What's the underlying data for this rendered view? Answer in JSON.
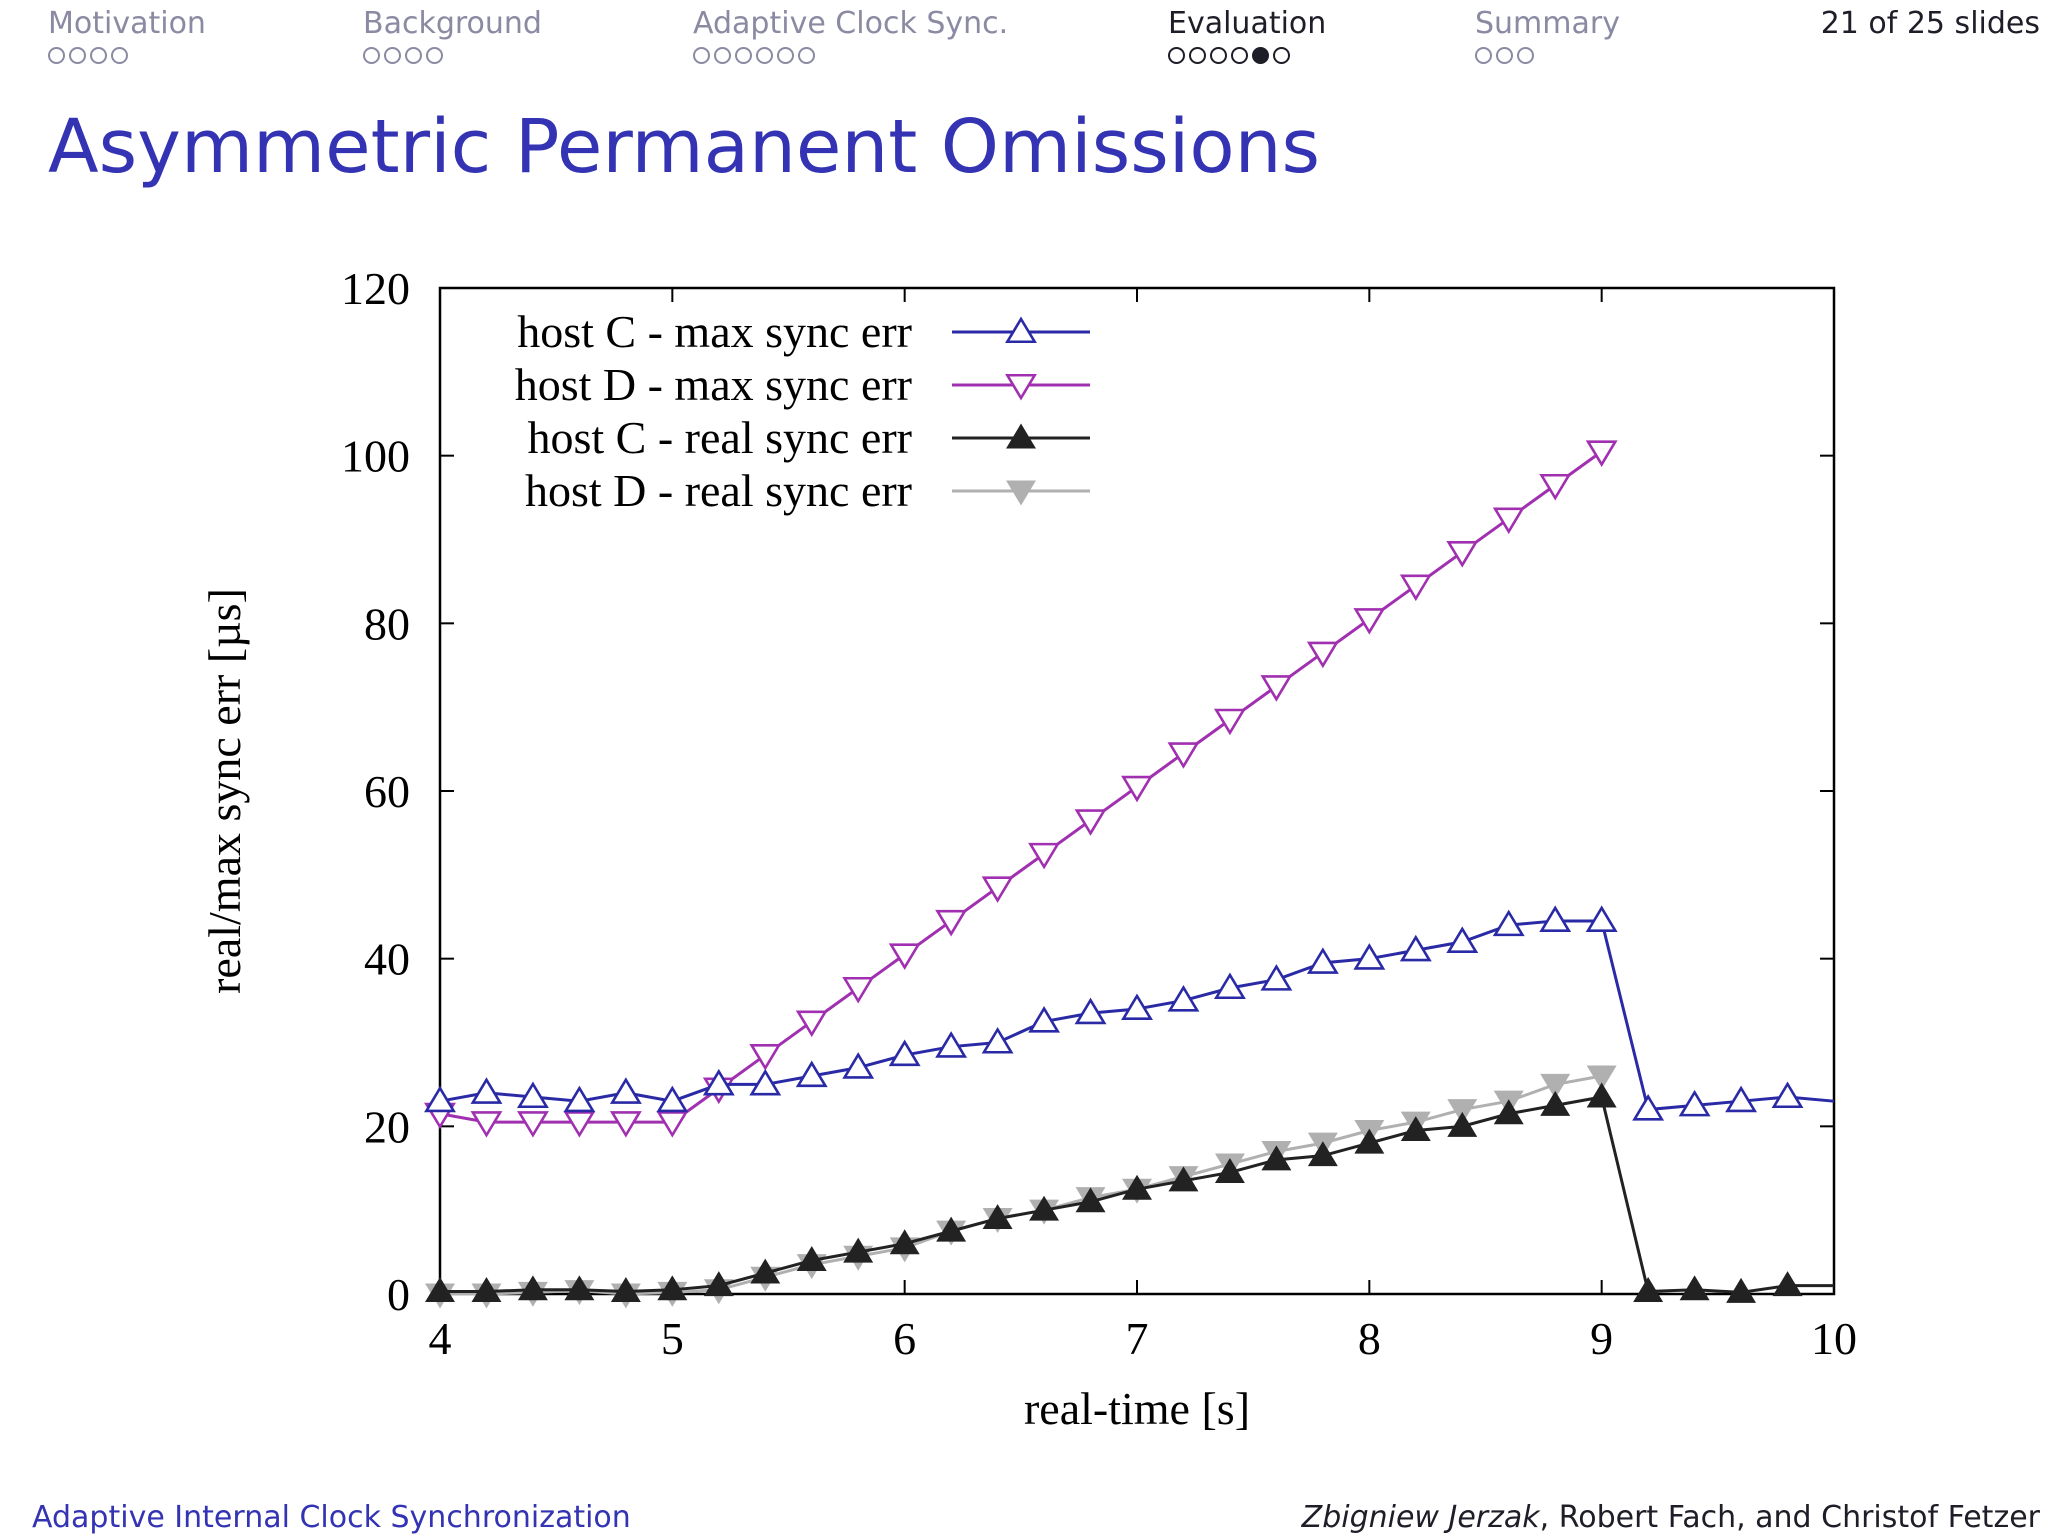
{
  "nav": {
    "sections": [
      {
        "label": "Motivation",
        "dots": 4,
        "filled": []
      },
      {
        "label": "Background",
        "dots": 4,
        "filled": []
      },
      {
        "label": "Adaptive Clock Sync.",
        "dots": 6,
        "filled": []
      },
      {
        "label": "Evaluation",
        "dots": 6,
        "filled": [
          4
        ]
      },
      {
        "label": "Summary",
        "dots": 3,
        "filled": []
      }
    ],
    "current_section": "Evaluation",
    "slide_counter": "21 of 25 slides"
  },
  "slide": {
    "title": "Asymmetric Permanent Omissions"
  },
  "footer": {
    "left": "Adaptive Internal Clock Synchronization",
    "author_highlight": "Zbigniew Jerzak",
    "author_rest": ", Robert Fach, and Christof Fetzer"
  },
  "colors": {
    "accent": "#3333b3",
    "text": "#1e1e28",
    "nav_muted": "#8a8aa3"
  },
  "chart_data": {
    "type": "line",
    "title": "",
    "xlabel": "real-time [s]",
    "ylabel": "real/max sync err [µs]",
    "xlim": [
      4,
      10
    ],
    "ylim": [
      0,
      120
    ],
    "xticks": [
      4,
      5,
      6,
      7,
      8,
      9,
      10
    ],
    "yticks": [
      0,
      20,
      40,
      60,
      80,
      100,
      120
    ],
    "grid": false,
    "legend_position": "top-left",
    "series": [
      {
        "name": "host C - max sync err",
        "color": "#2a2aa6",
        "marker": "triangle-up-open",
        "x": [
          4.0,
          4.2,
          4.4,
          4.6,
          4.8,
          5.0,
          5.2,
          5.4,
          5.6,
          5.8,
          6.0,
          6.2,
          6.4,
          6.6,
          6.8,
          7.0,
          7.2,
          7.4,
          7.6,
          7.8,
          8.0,
          8.2,
          8.4,
          8.6,
          8.8,
          9.0,
          9.2,
          9.4,
          9.6,
          9.8,
          10.0
        ],
        "y": [
          23,
          24,
          23.5,
          23,
          24,
          23,
          25,
          25,
          26,
          27,
          28.5,
          29.5,
          30,
          32.5,
          33.5,
          34,
          35,
          36.5,
          37.5,
          39.5,
          40,
          41,
          42,
          44,
          44.5,
          44.5,
          22,
          22.5,
          23,
          23.5,
          23
        ]
      },
      {
        "name": "host D - max sync err",
        "color": "#a030b0",
        "marker": "triangle-down-open",
        "x": [
          4.0,
          4.2,
          4.4,
          4.6,
          4.8,
          5.0,
          5.2,
          5.4,
          5.6,
          5.8,
          6.0,
          6.2,
          6.4,
          6.6,
          6.8,
          7.0,
          7.2,
          7.4,
          7.6,
          7.8,
          8.0,
          8.2,
          8.4,
          8.6,
          8.8,
          9.0
        ],
        "y": [
          21.5,
          20.5,
          20.5,
          20.5,
          20.5,
          20.5,
          24.5,
          28.5,
          32.5,
          36.5,
          40.5,
          44.5,
          48.5,
          52.5,
          56.5,
          60.5,
          64.5,
          68.5,
          72.5,
          76.5,
          80.5,
          84.5,
          88.5,
          92.5,
          96.5,
          100.5
        ]
      },
      {
        "name": "host C - real sync err",
        "color": "#222222",
        "marker": "triangle-up-filled",
        "x": [
          4.0,
          4.2,
          4.4,
          4.6,
          4.8,
          5.0,
          5.2,
          5.4,
          5.6,
          5.8,
          6.0,
          6.2,
          6.4,
          6.6,
          6.8,
          7.0,
          7.2,
          7.4,
          7.6,
          7.8,
          8.0,
          8.2,
          8.4,
          8.6,
          8.8,
          9.0,
          9.2,
          9.4,
          9.6,
          9.8,
          10.0
        ],
        "y": [
          0.3,
          0.3,
          0.5,
          0.5,
          0.3,
          0.5,
          1.0,
          2.5,
          4.0,
          5.0,
          6.0,
          7.5,
          9.0,
          10.0,
          11.0,
          12.5,
          13.5,
          14.5,
          16.0,
          16.5,
          18.0,
          19.5,
          20.0,
          21.5,
          22.5,
          23.5,
          0.3,
          0.5,
          0.2,
          1.0,
          1.0
        ]
      },
      {
        "name": "host D - real sync err",
        "color": "#b0b0b0",
        "marker": "triangle-down-filled",
        "x": [
          4.0,
          4.2,
          4.4,
          4.6,
          4.8,
          5.0,
          5.2,
          5.4,
          5.6,
          5.8,
          6.0,
          6.2,
          6.4,
          6.6,
          6.8,
          7.0,
          7.2,
          7.4,
          7.6,
          7.8,
          8.0,
          8.2,
          8.4,
          8.6,
          8.8,
          9.0
        ],
        "y": [
          0,
          0,
          0.2,
          0.4,
          0,
          0.2,
          0.5,
          2.0,
          3.5,
          4.5,
          5.5,
          7.5,
          9.0,
          10.0,
          11.5,
          12.5,
          14.0,
          15.5,
          17.0,
          18.0,
          19.5,
          20.5,
          22.0,
          23.0,
          25.0,
          26.0
        ]
      }
    ]
  }
}
